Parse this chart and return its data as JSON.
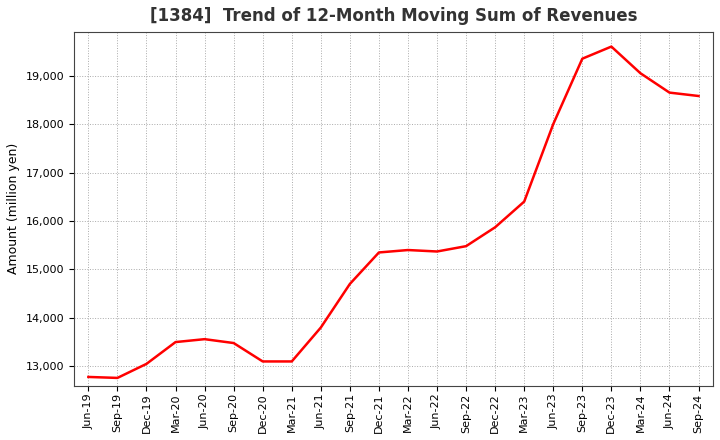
{
  "title": "[1384]  Trend of 12-Month Moving Sum of Revenues",
  "ylabel": "Amount (million yen)",
  "line_color": "#ff0000",
  "line_width": 1.8,
  "background_color": "#ffffff",
  "grid_color": "#aaaaaa",
  "x_labels": [
    "Jun-19",
    "Sep-19",
    "Dec-19",
    "Mar-20",
    "Jun-20",
    "Sep-20",
    "Dec-20",
    "Mar-21",
    "Jun-21",
    "Sep-21",
    "Dec-21",
    "Mar-22",
    "Jun-22",
    "Sep-22",
    "Dec-22",
    "Mar-23",
    "Jun-23",
    "Sep-23",
    "Dec-23",
    "Mar-24",
    "Jun-24",
    "Sep-24"
  ],
  "x_values": [
    0,
    1,
    2,
    3,
    4,
    5,
    6,
    7,
    8,
    9,
    10,
    11,
    12,
    13,
    14,
    15,
    16,
    17,
    18,
    19,
    20,
    21
  ],
  "y_values": [
    12780,
    12760,
    13050,
    13500,
    13560,
    13480,
    13100,
    13100,
    13800,
    14700,
    15350,
    15400,
    15370,
    15480,
    15870,
    16400,
    18000,
    19350,
    19600,
    19050,
    18650,
    18580
  ],
  "ylim_min": 12600,
  "ylim_max": 19900,
  "yticks": [
    13000,
    14000,
    15000,
    16000,
    17000,
    18000,
    19000
  ],
  "title_fontsize": 12,
  "title_color": "#333333",
  "axis_label_fontsize": 9,
  "tick_fontsize": 8,
  "ylabel_fontsize": 9
}
